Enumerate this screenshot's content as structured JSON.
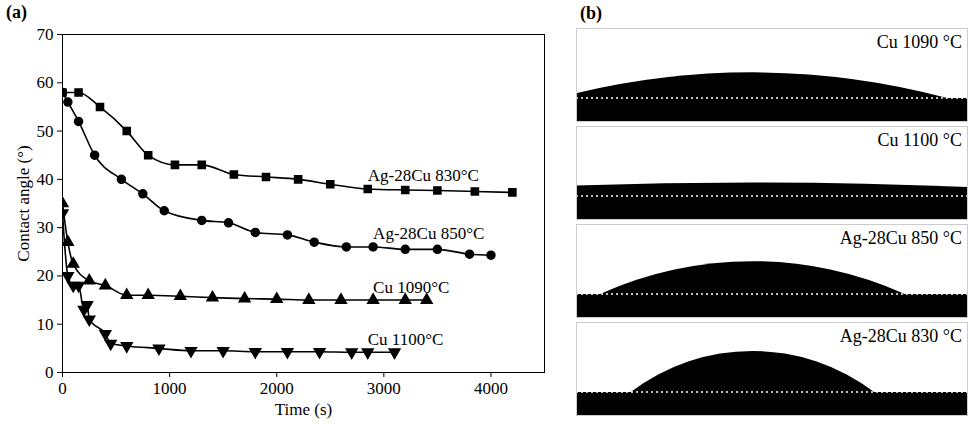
{
  "chart_data": {
    "type": "line",
    "panel_label": "(a)",
    "xlabel": "Time (s)",
    "ylabel": "Contact angle (°)",
    "xlim": [
      0,
      4500
    ],
    "xticks": [
      0,
      1000,
      2000,
      3000,
      4000
    ],
    "ylim": [
      0,
      70
    ],
    "yticks": [
      0,
      10,
      20,
      30,
      40,
      50,
      60,
      70
    ],
    "series": [
      {
        "name": "Ag-28Cu 830°C",
        "color": "#000000",
        "marker": "square",
        "x": [
          0,
          150,
          350,
          600,
          800,
          1050,
          1300,
          1600,
          1900,
          2200,
          2500,
          2850,
          3200,
          3500,
          3850,
          4200
        ],
        "values": [
          58,
          58,
          55,
          50,
          45,
          43,
          43,
          41,
          40.5,
          40,
          39,
          38,
          37.8,
          37.7,
          37.5,
          37.3
        ]
      },
      {
        "name": "Ag-28Cu 850°C",
        "color": "#000000",
        "marker": "circle",
        "x": [
          0,
          50,
          150,
          300,
          550,
          750,
          950,
          1300,
          1550,
          1800,
          2100,
          2350,
          2650,
          2900,
          3200,
          3500,
          3800,
          4000
        ],
        "values": [
          58,
          56,
          52,
          45,
          40,
          37,
          33.5,
          31.5,
          31,
          29,
          28.5,
          27,
          26,
          26,
          25.5,
          25.5,
          24.5,
          24.3
        ]
      },
      {
        "name": "Cu 1090°C",
        "color": "#000000",
        "marker": "triangle",
        "x": [
          0,
          50,
          100,
          250,
          400,
          600,
          800,
          1100,
          1400,
          1700,
          2000,
          2300,
          2600,
          2900,
          3200,
          3400
        ],
        "values": [
          35,
          27,
          22.5,
          19,
          18,
          16,
          16,
          15.8,
          15.5,
          15.3,
          15.2,
          15,
          15,
          15,
          15,
          15
        ]
      },
      {
        "name": "Cu 1100°C",
        "color": "#000000",
        "marker": "triangle-down",
        "x": [
          0,
          50,
          100,
          150,
          200,
          230,
          250,
          400,
          450,
          600,
          900,
          1200,
          1500,
          1800,
          2100,
          2400,
          2700,
          2850,
          3100
        ],
        "values": [
          33,
          20,
          18,
          18,
          13,
          14,
          11,
          8,
          6,
          5.5,
          5,
          4.5,
          4.5,
          4.3,
          4.3,
          4.3,
          4.2,
          4.2,
          4.2
        ]
      }
    ]
  },
  "panel_b": {
    "panel_label": "(b)",
    "images": [
      {
        "label": "Cu 1090 °C"
      },
      {
        "label": "Cu 1100 °C"
      },
      {
        "label": "Ag-28Cu 850 °C"
      },
      {
        "label": "Ag-28Cu 830 °C"
      }
    ]
  }
}
